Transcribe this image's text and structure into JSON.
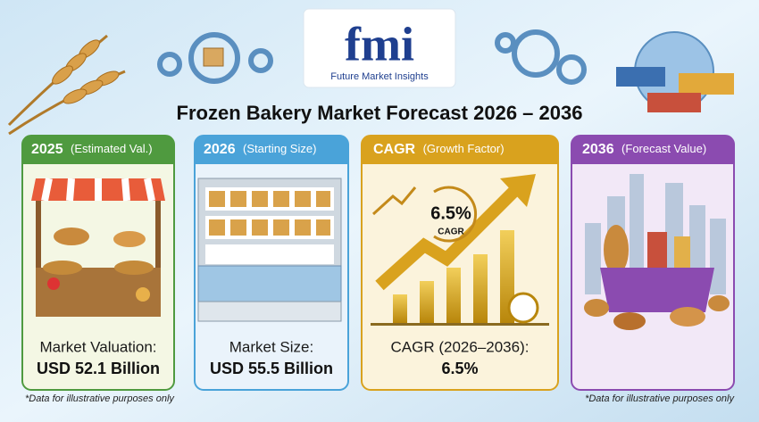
{
  "logo": {
    "name": "fmi",
    "tagline": "Future Market Insights"
  },
  "title": "Frozen Bakery Market Forecast 2026 – 2036",
  "cards": [
    {
      "year": "2025",
      "caption": "(Estimated Val.)",
      "label": "Market Valuation:",
      "value": "USD 52.1 Billion"
    },
    {
      "year": "2026",
      "caption": "(Starting Size)",
      "label": "Market Size:",
      "value": "USD 55.5 Billion"
    },
    {
      "year": "CAGR",
      "caption": "(Growth Factor)",
      "badge_value": "6.5%",
      "badge_label": "CAGR",
      "label": "CAGR (2026–2036):",
      "value": "6.5%"
    },
    {
      "year": "2036",
      "caption": "(Forecast Value)"
    }
  ],
  "footnotes": [
    "*Data for illustrative purposes only",
    "*Data for illustrative purposes only"
  ]
}
